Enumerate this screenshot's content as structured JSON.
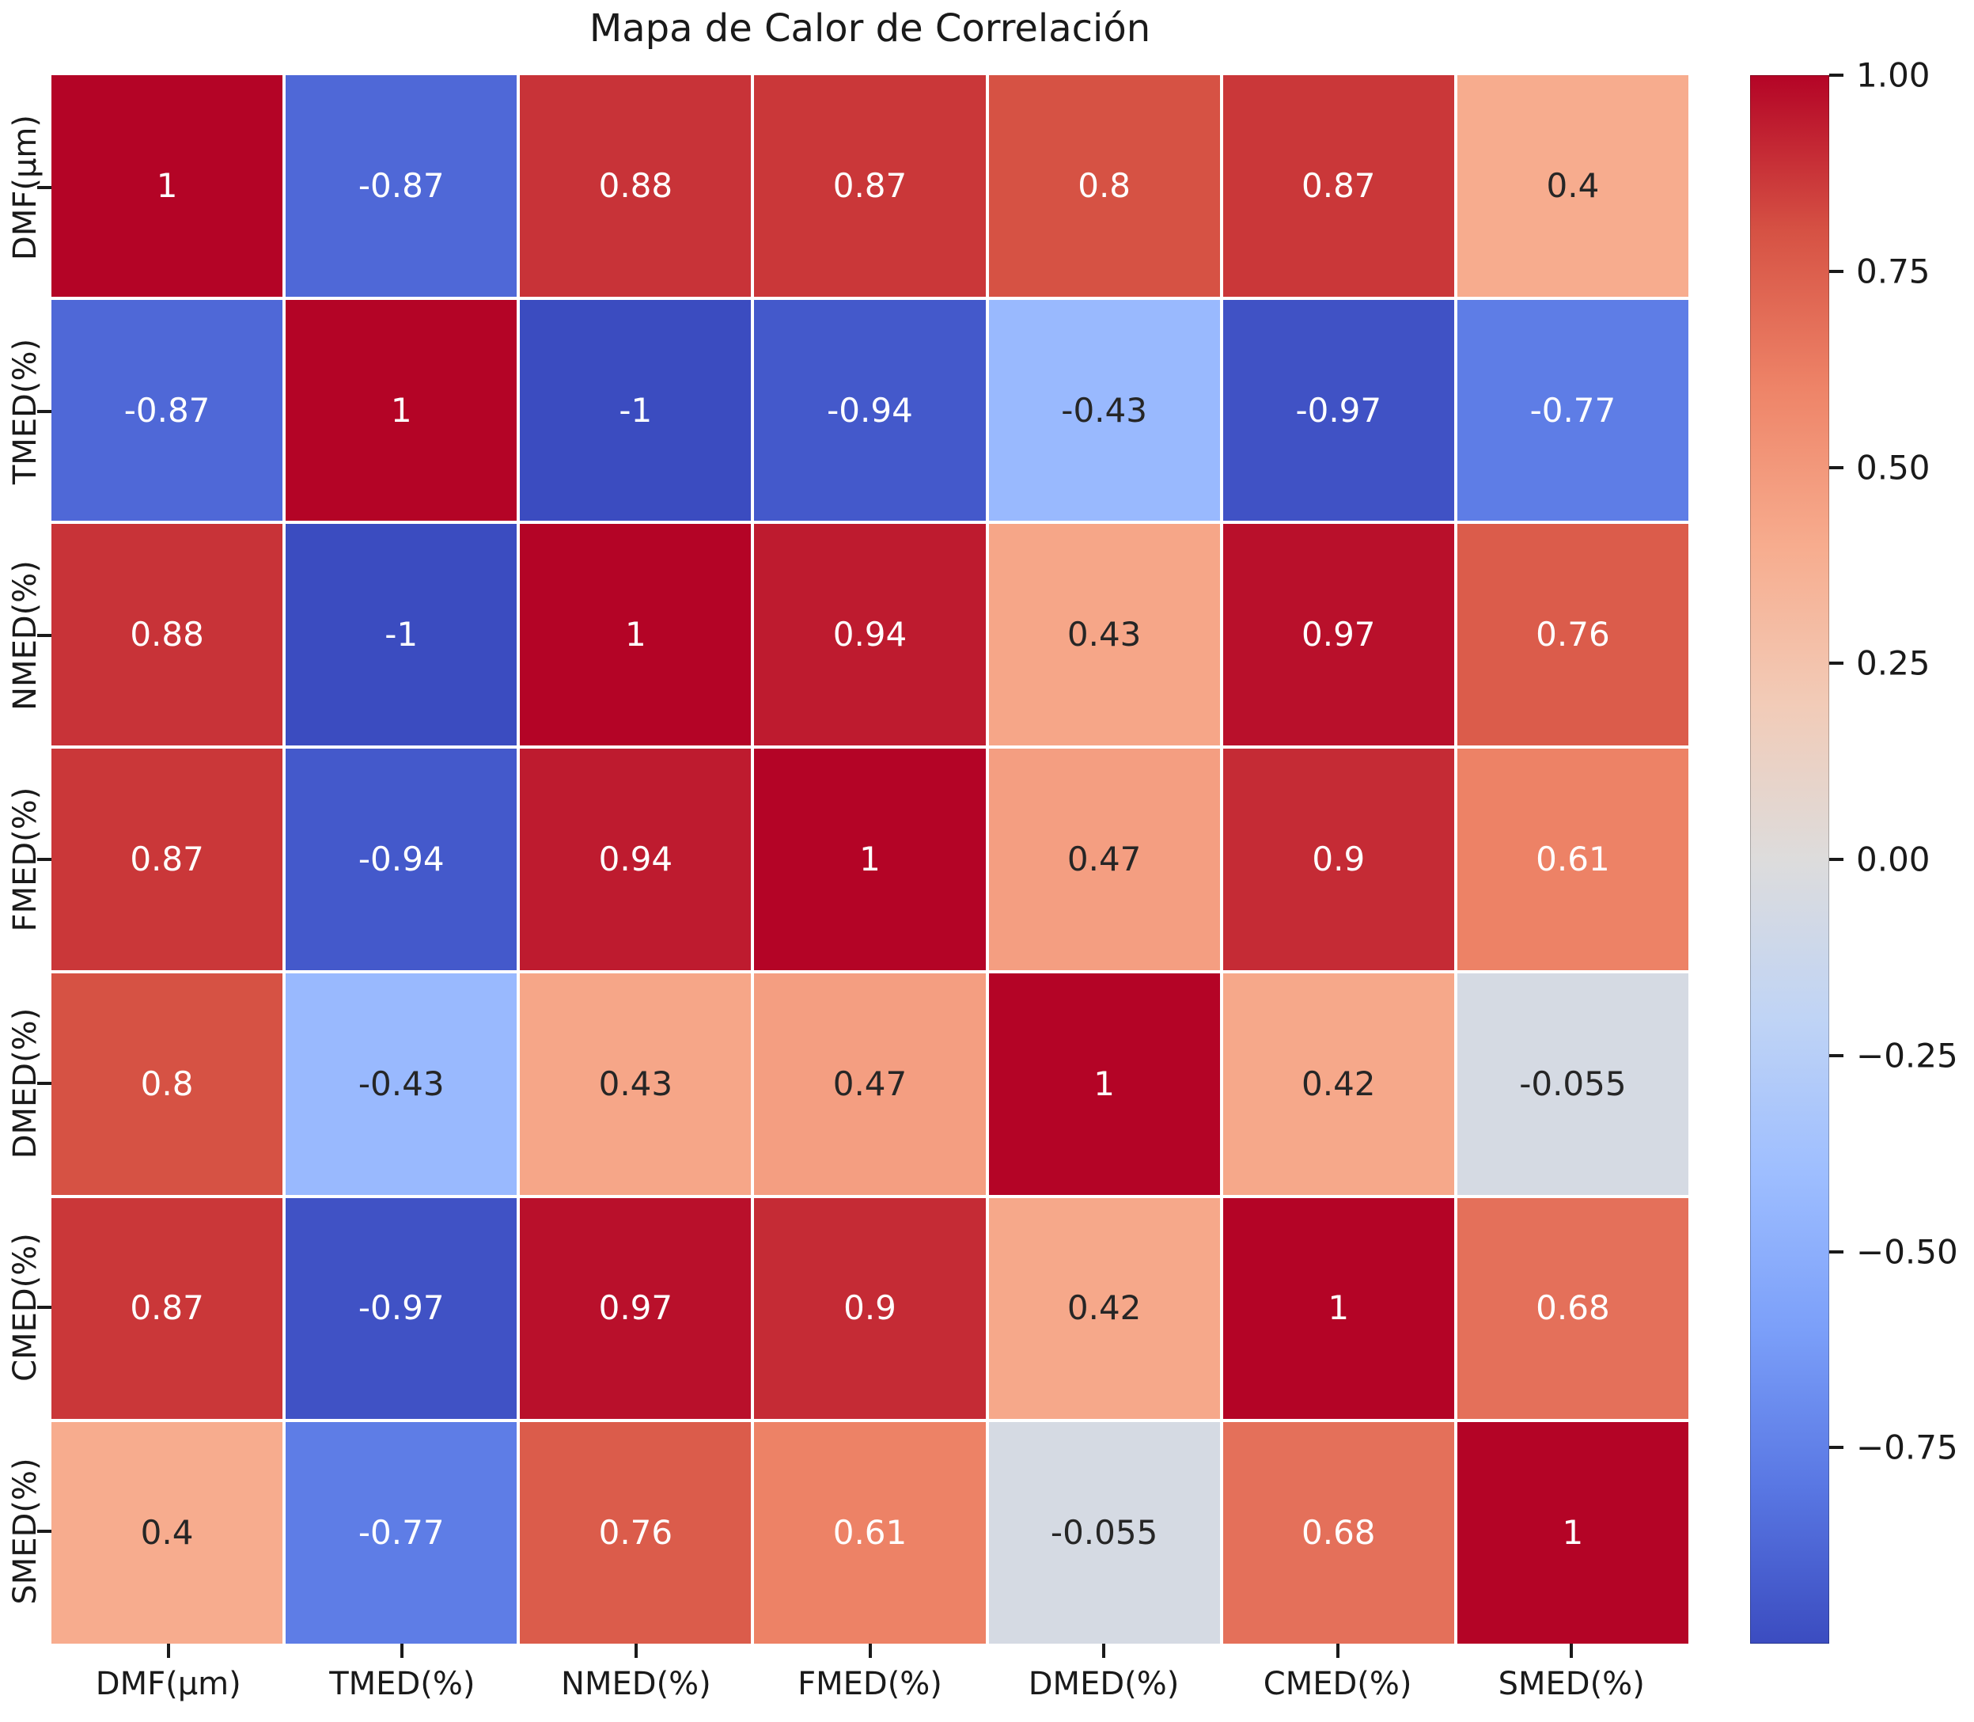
{
  "chart_data": {
    "type": "heatmap",
    "title": "Mapa de Calor de Correlación",
    "x_labels": [
      "DMF(μm)",
      "TMED(%)",
      "NMED(%)",
      "FMED(%)",
      "DMED(%)",
      "CMED(%)",
      "SMED(%)"
    ],
    "y_labels": [
      "DMF(μm)",
      "TMED(%)",
      "NMED(%)",
      "FMED(%)",
      "DMED(%)",
      "CMED(%)",
      "SMED(%)"
    ],
    "matrix": [
      [
        1,
        -0.87,
        0.88,
        0.87,
        0.8,
        0.87,
        0.4
      ],
      [
        -0.87,
        1,
        -1,
        -0.94,
        -0.43,
        -0.97,
        -0.77
      ],
      [
        0.88,
        -1,
        1,
        0.94,
        0.43,
        0.97,
        0.76
      ],
      [
        0.87,
        -0.94,
        0.94,
        1,
        0.47,
        0.9,
        0.61
      ],
      [
        0.8,
        -0.43,
        0.43,
        0.47,
        1,
        0.42,
        -0.055
      ],
      [
        0.87,
        -0.97,
        0.97,
        0.9,
        0.42,
        1,
        0.68
      ],
      [
        0.4,
        -0.77,
        0.76,
        0.61,
        -0.055,
        0.68,
        1
      ]
    ],
    "colorbar": {
      "vmin": -1,
      "vmax": 1,
      "ticks": [
        {
          "value": 1.0,
          "label": "1.00"
        },
        {
          "value": 0.75,
          "label": "0.75"
        },
        {
          "value": 0.5,
          "label": "0.50"
        },
        {
          "value": 0.25,
          "label": "0.25"
        },
        {
          "value": 0.0,
          "label": "0.00"
        },
        {
          "value": -0.25,
          "label": "−0.25"
        },
        {
          "value": -0.5,
          "label": "−0.50"
        },
        {
          "value": -0.75,
          "label": "−0.75"
        }
      ]
    },
    "colormap": {
      "name": "coolwarm",
      "stops": [
        {
          "t": 0.0,
          "color": "#3b4cc0"
        },
        {
          "t": 0.1,
          "color": "#5977e3"
        },
        {
          "t": 0.2,
          "color": "#7b9ff9"
        },
        {
          "t": 0.3,
          "color": "#9ebeff"
        },
        {
          "t": 0.4,
          "color": "#c0d4f5"
        },
        {
          "t": 0.5,
          "color": "#dddcdc"
        },
        {
          "t": 0.6,
          "color": "#f2cbb7"
        },
        {
          "t": 0.7,
          "color": "#f7ac8e"
        },
        {
          "t": 0.8,
          "color": "#ee8468"
        },
        {
          "t": 0.9,
          "color": "#d65244"
        },
        {
          "t": 1.0,
          "color": "#b40426"
        }
      ]
    },
    "style": {
      "annotation_dark_text": "#262626",
      "annotation_light_text": "#ffffff",
      "grid_line_color": "#ffffff",
      "axis_text_color": "#1a1a1a"
    },
    "layout_hints": {
      "legend_position": "right-colorbar",
      "grid": "white cell separators",
      "ylim": [
        -1,
        1
      ]
    }
  }
}
